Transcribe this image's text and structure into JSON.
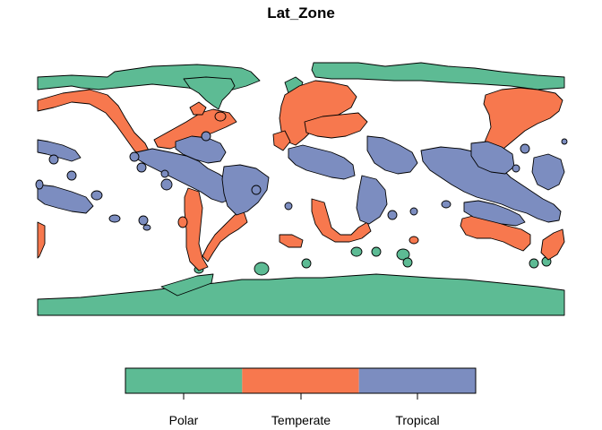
{
  "map": {
    "title": "Lat_Zone",
    "colors": {
      "Polar": "#5DBB94",
      "Temperate": "#F7784E",
      "Tropical": "#7C8DC0"
    },
    "legend": {
      "entries": [
        {
          "name": "Polar",
          "color": "#5DBB94"
        },
        {
          "name": "Temperate",
          "color": "#F7784E"
        },
        {
          "name": "Tropical",
          "color": "#7C8DC0"
        }
      ]
    }
  }
}
